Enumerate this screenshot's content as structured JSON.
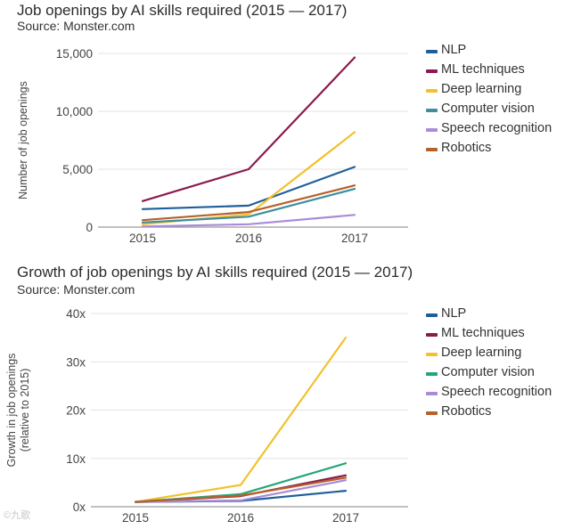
{
  "chart_data": [
    {
      "type": "line",
      "title": "Job openings by AI skills required (2015 — 2017)",
      "subtitle": "Source: Monster.com",
      "xlabel": "",
      "ylabel": "Number of job openings",
      "categories": [
        "2015",
        "2016",
        "2017"
      ],
      "y_ticks": [
        "0",
        "5,000",
        "10,000",
        "15,000"
      ],
      "y_tick_values": [
        0,
        5000,
        10000,
        15000
      ],
      "ylim": [
        0,
        15000
      ],
      "grid": true,
      "legend_position": "right",
      "series": [
        {
          "name": "NLP",
          "color": "#1f5f99",
          "values": [
            1550,
            1850,
            5200
          ]
        },
        {
          "name": "ML techniques",
          "color": "#8b1a4f",
          "values": [
            2250,
            5000,
            14650
          ]
        },
        {
          "name": "Deep learning",
          "color": "#f2c12e",
          "values": [
            250,
            1100,
            8200
          ]
        },
        {
          "name": "Computer vision",
          "color": "#3e8e9e",
          "values": [
            400,
            900,
            3300
          ]
        },
        {
          "name": "Speech recognition",
          "color": "#a98bd9",
          "values": [
            50,
            250,
            1050
          ]
        },
        {
          "name": "Robotics",
          "color": "#b5612a",
          "values": [
            600,
            1300,
            3600
          ]
        }
      ]
    },
    {
      "type": "line",
      "title": "Growth of job openings by AI skills required (2015 — 2017)",
      "subtitle": "Source: Monster.com",
      "xlabel": "",
      "ylabel": "Growth in job openings (relative to 2015)",
      "ylabel_lines": [
        "Growth in job openings",
        "(relative to 2015)"
      ],
      "categories": [
        "2015",
        "2016",
        "2017"
      ],
      "y_ticks": [
        "0x",
        "10x",
        "20x",
        "30x",
        "40x"
      ],
      "y_tick_values": [
        0,
        10,
        20,
        30,
        40
      ],
      "ylim": [
        0,
        40
      ],
      "grid": true,
      "legend_position": "right",
      "series": [
        {
          "name": "NLP",
          "color": "#1f5f99",
          "values": [
            1,
            1.2,
            3.3
          ]
        },
        {
          "name": "ML techniques",
          "color": "#8b1a4f",
          "values": [
            1,
            2.2,
            6.5
          ]
        },
        {
          "name": "Deep learning",
          "color": "#f2c12e",
          "values": [
            1,
            4.5,
            35
          ]
        },
        {
          "name": "Computer vision",
          "color": "#22a67a",
          "values": [
            1,
            2.6,
            9
          ]
        },
        {
          "name": "Speech recognition",
          "color": "#a98bd9",
          "values": [
            1,
            1.3,
            5.5
          ]
        },
        {
          "name": "Robotics",
          "color": "#b5612a",
          "values": [
            1,
            2.3,
            6
          ]
        }
      ]
    }
  ],
  "watermark": "©九歌"
}
